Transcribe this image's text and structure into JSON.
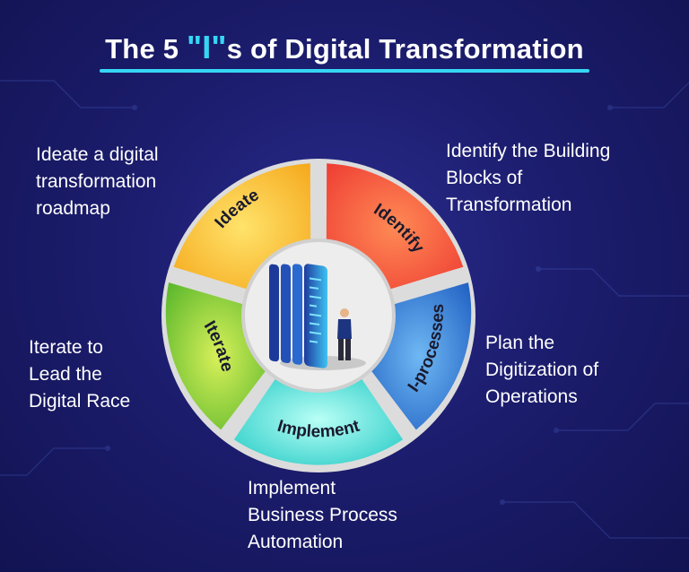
{
  "title": {
    "prefix": "The 5 ",
    "accent": "\"I\"",
    "suffix": "s of Digital Transformation"
  },
  "segments": {
    "ideate": {
      "label": "Ideate",
      "color": "#f7b824"
    },
    "identify": {
      "label": "Identify",
      "color": "#f45a3c"
    },
    "iprocesses": {
      "label": "I-processes",
      "color": "#2f7fd8"
    },
    "implement": {
      "label": "Implement",
      "color": "#3ed8cf"
    },
    "iterate": {
      "label": "Iterate",
      "color": "#8ccb2c"
    }
  },
  "descriptions": {
    "ideate": [
      "Ideate a digital",
      "transformation",
      "roadmap"
    ],
    "identify": [
      "Identify the Building",
      "Blocks of",
      "Transformation"
    ],
    "iprocesses": [
      "Plan the",
      "Digitization of",
      "Operations"
    ],
    "implement": [
      "Implement",
      "Business Process",
      "Automation"
    ],
    "iterate": [
      "Iterate to",
      "Lead the",
      "Digital Race"
    ]
  },
  "colors": {
    "accent": "#36d6f5",
    "background": "#1c1d6e",
    "hub": "#ededed",
    "divider": "#d9d9d9"
  },
  "center_icon": "server-with-businessman-icon"
}
